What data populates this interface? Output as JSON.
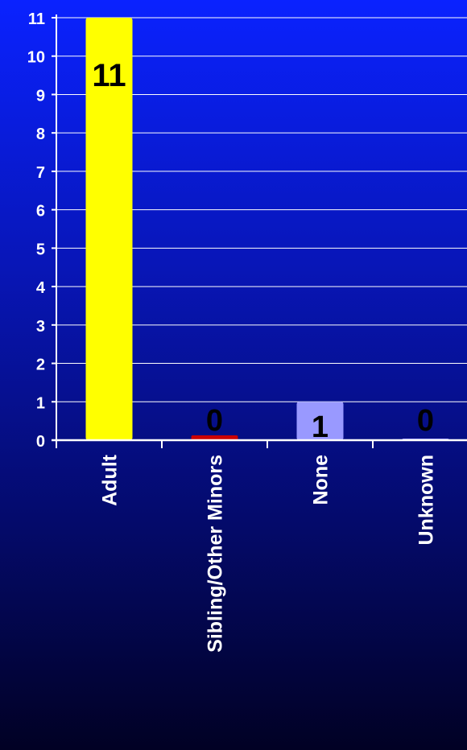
{
  "chart_data": {
    "type": "bar",
    "categories": [
      "Adult",
      "Sibling/Other Minors",
      "None",
      "Unknown"
    ],
    "values": [
      11,
      0,
      1,
      0
    ],
    "data_labels": [
      "11",
      "0",
      "1",
      "0"
    ],
    "bar_colors": [
      "#ffff00",
      "#cc0000",
      "#9999ff",
      "#9999ff"
    ],
    "ylim": [
      0,
      11
    ],
    "yticks": [
      "0",
      "1",
      "2",
      "3",
      "4",
      "5",
      "6",
      "7",
      "8",
      "9",
      "10",
      "11"
    ],
    "grid": true,
    "title": "",
    "xlabel": "",
    "ylabel": ""
  }
}
